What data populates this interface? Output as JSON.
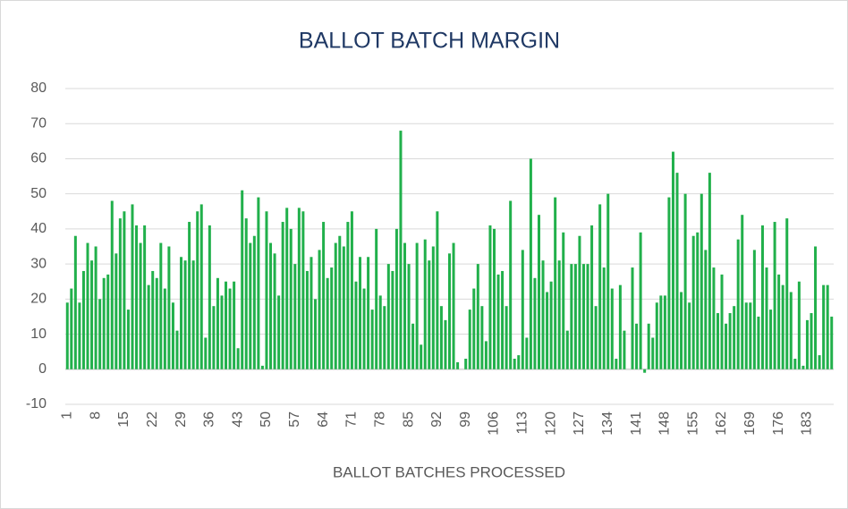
{
  "chart_data": {
    "type": "bar",
    "title": "BALLOT BATCH MARGIN",
    "x_label": "BALLOT BATCHES PROCESSED",
    "categories": [
      "1",
      null,
      null,
      null,
      null,
      null,
      null,
      "8",
      null,
      null,
      null,
      null,
      null,
      null,
      "15",
      null,
      null,
      null,
      null,
      null,
      null,
      "22",
      null,
      null,
      null,
      null,
      null,
      null,
      "29",
      null,
      null,
      null,
      null,
      null,
      null,
      "36",
      null,
      null,
      null,
      null,
      null,
      null,
      "43",
      null,
      null,
      null,
      null,
      null,
      null,
      "50",
      null,
      null,
      null,
      null,
      null,
      null,
      "57",
      null,
      null,
      null,
      null,
      null,
      null,
      "64",
      null,
      null,
      null,
      null,
      null,
      null,
      "71",
      null,
      null,
      null,
      null,
      null,
      null,
      "78",
      null,
      null,
      null,
      null,
      null,
      null,
      "85",
      null,
      null,
      null,
      null,
      null,
      null,
      "92",
      null,
      null,
      null,
      null,
      null,
      null,
      "99",
      null,
      null,
      null,
      null,
      null,
      null,
      "106",
      null,
      null,
      null,
      null,
      null,
      null,
      "113",
      null,
      null,
      null,
      null,
      null,
      null,
      "120",
      null,
      null,
      null,
      null,
      null,
      null,
      "127",
      null,
      null,
      null,
      null,
      null,
      null,
      "134",
      null,
      null,
      null,
      null,
      null,
      null,
      "141",
      null,
      null,
      null,
      null,
      null,
      null,
      "148",
      null,
      null,
      null,
      null,
      null,
      null,
      "155",
      null,
      null,
      null,
      null,
      null,
      null,
      "162",
      null,
      null,
      null,
      null,
      null,
      null,
      "169",
      null,
      null,
      null,
      null,
      null,
      null,
      "176",
      null,
      null,
      null,
      null,
      null,
      null,
      "183",
      null,
      null,
      null,
      null,
      null,
      null
    ],
    "values": [
      19,
      23,
      38,
      19,
      28,
      36,
      31,
      35,
      20,
      26,
      27,
      48,
      33,
      43,
      45,
      17,
      47,
      41,
      36,
      41,
      24,
      28,
      26,
      36,
      23,
      35,
      19,
      11,
      32,
      31,
      42,
      31,
      45,
      47,
      9,
      41,
      18,
      26,
      21,
      25,
      23,
      25,
      6,
      51,
      43,
      36,
      38,
      49,
      1,
      45,
      36,
      33,
      21,
      42,
      46,
      40,
      30,
      46,
      45,
      28,
      32,
      20,
      34,
      42,
      26,
      29,
      36,
      38,
      35,
      42,
      45,
      25,
      32,
      23,
      32,
      17,
      40,
      21,
      18,
      30,
      28,
      40,
      68,
      36,
      30,
      13,
      36,
      7,
      37,
      31,
      35,
      45,
      18,
      14,
      33,
      36,
      2,
      0,
      3,
      17,
      23,
      30,
      18,
      8,
      41,
      40,
      27,
      28,
      18,
      48,
      3,
      4,
      34,
      9,
      60,
      26,
      44,
      31,
      22,
      25,
      49,
      31,
      39,
      11,
      30,
      30,
      38,
      30,
      30,
      41,
      18,
      47,
      29,
      50,
      23,
      3,
      24,
      11,
      0,
      29,
      13,
      39,
      -1,
      13,
      9,
      19,
      21,
      21,
      49,
      62,
      56,
      22,
      50,
      19,
      38,
      39,
      50,
      34,
      56,
      29,
      16,
      27,
      13,
      16,
      18,
      37,
      44,
      19,
      19,
      34,
      15,
      41,
      29,
      17,
      42,
      27,
      24,
      43,
      22,
      3,
      25,
      1,
      14,
      16,
      35,
      4,
      24,
      24,
      15
    ],
    "color": "#21b04b",
    "ylim": [
      -10,
      80
    ],
    "yticks": [
      -10,
      0,
      10,
      20,
      30,
      40,
      50,
      60,
      70,
      80
    ],
    "grid": true
  }
}
